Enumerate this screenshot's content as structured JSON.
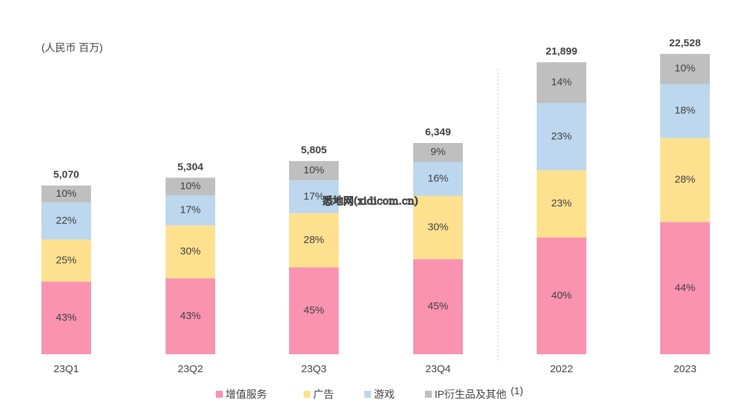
{
  "chart_data": {
    "type": "stacked-percent-bar",
    "subtitle": "(人民币 百万)",
    "categories": [
      "23Q1",
      "23Q2",
      "23Q3",
      "23Q4",
      "2022",
      "2023"
    ],
    "totals": [
      5070,
      5304,
      5805,
      6349,
      21899,
      22528
    ],
    "total_labels": [
      "5,070",
      "5,304",
      "5,805",
      "6,349",
      "21,899",
      "22,528"
    ],
    "series": [
      {
        "name": "增值服务",
        "color": "#f993b0",
        "values": [
          43,
          43,
          45,
          45,
          40,
          44
        ],
        "value_labels": [
          "43%",
          "43%",
          "45%",
          "45%",
          "40%",
          "44%"
        ]
      },
      {
        "name": "广告",
        "color": "#fde18f",
        "values": [
          25,
          30,
          28,
          30,
          23,
          28
        ],
        "value_labels": [
          "25%",
          "30%",
          "28%",
          "30%",
          "23%",
          "28%"
        ]
      },
      {
        "name": "游戏",
        "color": "#bcd7ee",
        "values": [
          22,
          17,
          17,
          16,
          23,
          18
        ],
        "value_labels": [
          "22%",
          "17%",
          "17%",
          "16%",
          "23%",
          "18%"
        ]
      },
      {
        "name": "IP衍生品及其他",
        "color": "#bfbfbf",
        "values": [
          10,
          10,
          10,
          9,
          14,
          10
        ],
        "value_labels": [
          "10%",
          "10%",
          "10%",
          "9%",
          "14%",
          "10%"
        ]
      }
    ],
    "legend_note": "(1)",
    "watermark": "悉地网(xidicom.cn)"
  }
}
